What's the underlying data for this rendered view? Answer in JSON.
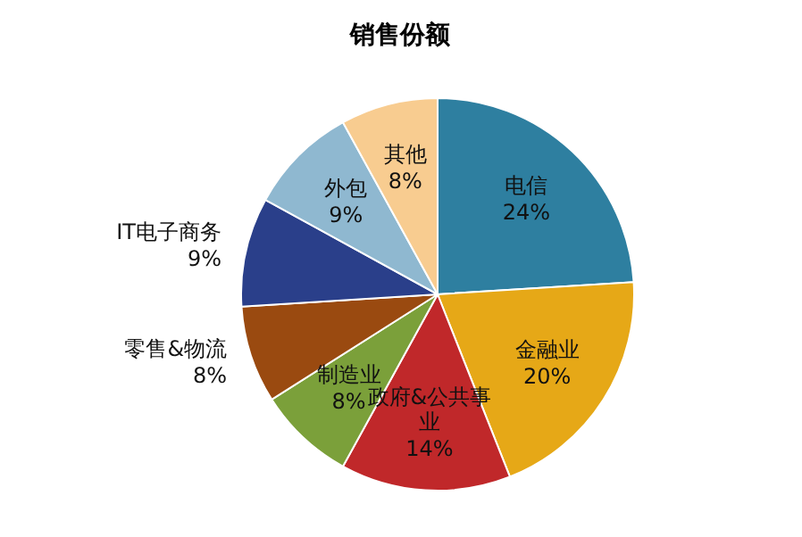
{
  "chart_data": {
    "type": "pie",
    "title": "销售份额",
    "categories": [
      "电信",
      "金融业",
      "政府&公共事业",
      "制造业",
      "零售&物流",
      "IT电子商务",
      "外包",
      "其他"
    ],
    "values": [
      24,
      20,
      14,
      8,
      8,
      9,
      9,
      8
    ],
    "colors": [
      "#2e7fa0",
      "#e6a817",
      "#c0282a",
      "#7ba03a",
      "#9a4a10",
      "#2a3f8a",
      "#8fb8d0",
      "#f8cc90"
    ],
    "value_labels": [
      "24%",
      "20%",
      "14%",
      "8%",
      "8%",
      "9%",
      "9%",
      "8%"
    ]
  }
}
